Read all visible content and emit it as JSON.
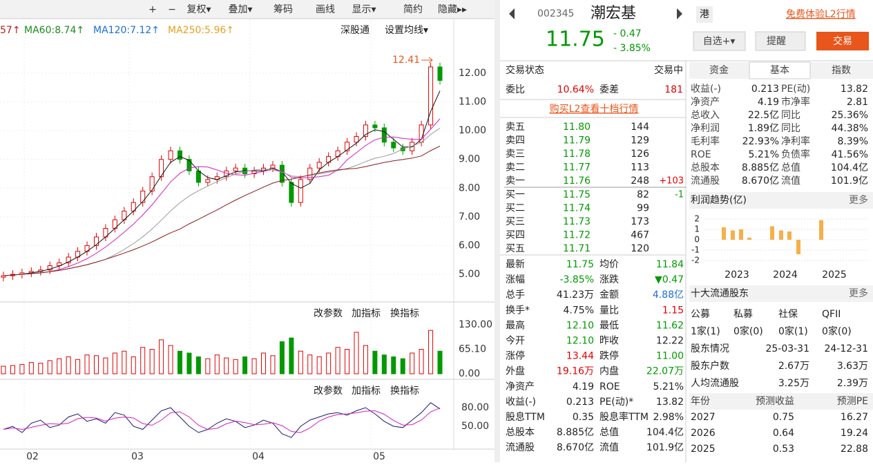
{
  "left": {
    "toolbar": [
      "+",
      "−",
      "复权▾",
      "叠加▾",
      "筹码",
      "画线",
      "显示▾",
      "简约",
      "隐藏▸▸"
    ],
    "ma": [
      {
        "text": "57↑",
        "color": "#b02020"
      },
      {
        "text": "MA60:8.74↑",
        "color": "#1e8a1e"
      },
      {
        "text": "MA120:7.12↑",
        "color": "#1a6fd3"
      },
      {
        "text": "MA250:5.96↑",
        "color": "#e8a020"
      }
    ],
    "links": [
      "深股通",
      "设置均线▾"
    ],
    "high_label": "12.41",
    "price": {
      "ylim": [
        4.5,
        12.8
      ],
      "yticks": [
        {
          "value": 5,
          "label": "5.00"
        },
        {
          "value": 6,
          "label": "6.00"
        },
        {
          "value": 7,
          "label": "7.00"
        },
        {
          "value": 8,
          "label": "8.00"
        },
        {
          "value": 9,
          "label": "9.00"
        },
        {
          "value": 10,
          "label": "10.00"
        },
        {
          "value": 11,
          "label": "11.00"
        },
        {
          "value": 12,
          "label": "12.00"
        }
      ],
      "closes": [
        4.95,
        5.0,
        5.05,
        5.1,
        5.15,
        5.3,
        5.4,
        5.6,
        5.8,
        6.0,
        6.3,
        6.6,
        6.9,
        7.2,
        7.5,
        7.9,
        8.4,
        9.0,
        9.3,
        9.0,
        8.6,
        8.2,
        8.3,
        8.4,
        8.6,
        8.7,
        8.5,
        8.6,
        8.7,
        8.8,
        8.2,
        7.5,
        8.3,
        8.7,
        8.9,
        9.1,
        9.3,
        9.6,
        9.8,
        10.2,
        10.1,
        9.6,
        9.4,
        9.3,
        9.6,
        10.2,
        12.22,
        11.75
      ]
    },
    "months": [
      "02",
      "03",
      "04",
      "05"
    ],
    "panel_buttons": [
      "改参数",
      "加指标",
      "换指标"
    ],
    "volume": {
      "ylim": [
        0,
        130
      ],
      "yticks": [
        {
          "value": 130,
          "label": "130.00"
        },
        {
          "value": 65.1,
          "label": "65.10"
        },
        {
          "value": 0,
          "label": "0.00"
        }
      ],
      "values": [
        20,
        22,
        25,
        30,
        28,
        35,
        40,
        45,
        38,
        50,
        48,
        42,
        55,
        60,
        45,
        70,
        65,
        90,
        75,
        60,
        55,
        45,
        40,
        50,
        42,
        38,
        45,
        40,
        55,
        48,
        85,
        95,
        60,
        50,
        45,
        55,
        70,
        65,
        110,
        75,
        60,
        50,
        45,
        40,
        55,
        65,
        115,
        60
      ]
    },
    "osc": {
      "ylim": [
        10,
        112
      ],
      "yticks": [
        {
          "value": 80,
          "label": "80.00"
        },
        {
          "value": 50,
          "label": "50.00"
        }
      ],
      "values": [
        45,
        50,
        40,
        55,
        60,
        48,
        52,
        65,
        70,
        58,
        62,
        55,
        72,
        68,
        50,
        45,
        60,
        75,
        80,
        65,
        50,
        40,
        45,
        55,
        62,
        58,
        48,
        52,
        60,
        55,
        38,
        32,
        50,
        60,
        65,
        70,
        72,
        68,
        75,
        80,
        70,
        58,
        50,
        48,
        60,
        72,
        88,
        78
      ]
    }
  },
  "header": {
    "code": "002345",
    "name": "潮宏基",
    "tag": "港",
    "l2": "免费体验L2行情",
    "price": "11.75",
    "change": "- 0.47",
    "pct": "- 3.85%",
    "buttons": [
      "自选+▾",
      "提醒",
      "交易"
    ]
  },
  "status": {
    "label": "交易状态",
    "value": "交易中",
    "wb_label": "委比",
    "wb": "10.64%",
    "wc_label": "委差",
    "wc": "181",
    "l2_link": "购买L2查看十档行情"
  },
  "asks": [
    {
      "name": "卖五",
      "price": "11.80",
      "vol": "144"
    },
    {
      "name": "卖四",
      "price": "11.79",
      "vol": "129"
    },
    {
      "name": "卖三",
      "price": "11.78",
      "vol": "126"
    },
    {
      "name": "卖二",
      "price": "11.77",
      "vol": "113"
    },
    {
      "name": "卖一",
      "price": "11.76",
      "vol": "248",
      "chg": "+103"
    }
  ],
  "bids": [
    {
      "name": "买一",
      "price": "11.75",
      "vol": "82",
      "chg": "-1"
    },
    {
      "name": "买二",
      "price": "11.74",
      "vol": "99"
    },
    {
      "name": "买三",
      "price": "11.73",
      "vol": "173"
    },
    {
      "name": "买四",
      "price": "11.72",
      "vol": "467"
    },
    {
      "name": "买五",
      "price": "11.71",
      "vol": "120"
    }
  ],
  "stats": [
    [
      "最新",
      "11.75",
      "#009900",
      "均价",
      "11.84",
      "#009900"
    ],
    [
      "涨幅",
      "-3.85%",
      "#009900",
      "涨跌",
      "▼0.47",
      "#009900"
    ],
    [
      "总手",
      "41.23万",
      "#222",
      "金额",
      "4.88亿",
      "#1a6fd3"
    ],
    [
      "换手*",
      "4.75%",
      "#222",
      "量比",
      "1.15",
      "#e00000"
    ],
    [
      "最高",
      "12.10",
      "#009900",
      "最低",
      "11.62",
      "#009900"
    ],
    [
      "今开",
      "12.10",
      "#009900",
      "昨收",
      "12.22",
      "#222"
    ],
    [
      "涨停",
      "13.44",
      "#e00000",
      "跌停",
      "11.00",
      "#009900"
    ],
    [
      "外盘",
      "19.16万",
      "#e00000",
      "内盘",
      "22.07万",
      "#009900"
    ],
    [
      "净资产",
      "4.19",
      "#222",
      "ROE",
      "5.21%",
      "#222"
    ],
    [
      "收益(-)",
      "0.213",
      "#222",
      "PE(动)*",
      "13.82",
      "#222"
    ],
    [
      "股息TTM",
      "0.35",
      "#222",
      "股息率TTM",
      "2.98%",
      "#222"
    ],
    [
      "总股本",
      "8.885亿",
      "#222",
      "总值",
      "104.4亿",
      "#222"
    ],
    [
      "流通股",
      "8.670亿",
      "#222",
      "流值",
      "101.9亿",
      "#222"
    ]
  ],
  "tabs": [
    "资金",
    "基本",
    "指数"
  ],
  "fin": [
    [
      "收益(-)",
      "0.213",
      "PE(动)",
      "13.82"
    ],
    [
      "净资产",
      "4.19",
      "市净率",
      "2.81"
    ],
    [
      "总收入",
      "22.5亿",
      "同比",
      "25.36%"
    ],
    [
      "净利润",
      "1.89亿",
      "同比",
      "44.38%"
    ],
    [
      "毛利率",
      "22.93%",
      "净利率",
      "8.39%"
    ],
    [
      "ROE",
      "5.21%",
      "负债率",
      "41.56%"
    ],
    [
      "总股本",
      "8.885亿",
      "总值",
      "104.4亿"
    ],
    [
      "流通股",
      "8.670亿",
      "流值",
      "101.9亿"
    ]
  ],
  "profit": {
    "title": "利润趋势(亿)",
    "more": "更多",
    "type": "bar",
    "color": "#f5b04a",
    "ylim": [
      -2.4,
      2.4
    ],
    "yticks": [
      2,
      1,
      0,
      -1,
      -2
    ],
    "years": [
      "2023",
      "2024",
      "2025"
    ],
    "values": [
      1.2,
      0.9,
      1.0,
      0.2,
      1.3,
      0.9,
      0.8,
      -1.4,
      1.9
    ]
  },
  "holders": {
    "title": "十大流通股东",
    "more": "更多",
    "kinds": [
      "公募",
      "私募",
      "社保",
      "QFII"
    ],
    "counts": [
      "1家(1)",
      "0家(0)",
      "0家(1)",
      "0家(0)"
    ],
    "rows": [
      [
        "股东情况",
        "25-03-31",
        "24-12-31"
      ],
      [
        "股东户数",
        "2.67万",
        "3.63万"
      ],
      [
        "人均流通股",
        "3.25万",
        "2.39万"
      ]
    ]
  },
  "forecast": {
    "header": [
      "年份",
      "预测收益",
      "预测PE"
    ],
    "rows": [
      [
        "2027",
        "0.75",
        "16.27"
      ],
      [
        "2026",
        "0.64",
        "19.24"
      ],
      [
        "2025",
        "0.53",
        "22.88"
      ]
    ]
  }
}
